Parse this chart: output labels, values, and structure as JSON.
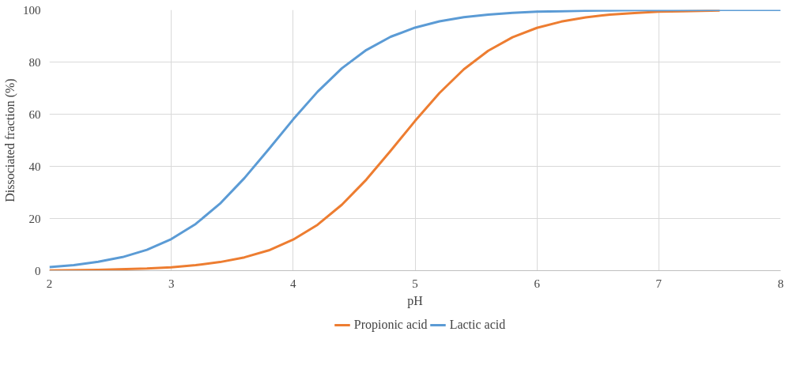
{
  "chart_data": {
    "type": "line",
    "xlabel": "pH",
    "ylabel": "Dissociated fraction (%)",
    "xlim": [
      2,
      8
    ],
    "ylim": [
      0,
      100
    ],
    "xticks": [
      2,
      3,
      4,
      5,
      6,
      7,
      8
    ],
    "yticks": [
      0,
      20,
      40,
      60,
      80,
      100
    ],
    "grid": true,
    "legend": "bottom",
    "marker": "none",
    "line_style": "solid",
    "series": [
      {
        "name": "Propionic acid",
        "color": "#ed7d31",
        "x": [
          2.0,
          2.4,
          2.8,
          3.0,
          3.2,
          3.4,
          3.6,
          3.8,
          4.0,
          4.2,
          4.4,
          4.6,
          4.8,
          5.0,
          5.2,
          5.4,
          5.6,
          5.8,
          6.0,
          6.2,
          6.4,
          6.6,
          6.8,
          7.0,
          7.2,
          7.5
        ],
        "values": [
          0.1,
          0.3,
          0.8,
          1.3,
          2.1,
          3.3,
          5.1,
          7.8,
          11.9,
          17.6,
          25.3,
          34.9,
          46.0,
          57.4,
          68.1,
          77.2,
          84.3,
          89.5,
          93.1,
          95.5,
          97.1,
          98.2,
          98.8,
          99.3,
          99.5,
          99.8
        ]
      },
      {
        "name": "Lactic acid",
        "color": "#5b9bd5",
        "x": [
          2.0,
          2.2,
          2.4,
          2.6,
          2.8,
          3.0,
          3.2,
          3.4,
          3.6,
          3.8,
          4.0,
          4.2,
          4.4,
          4.6,
          4.8,
          5.0,
          5.2,
          5.4,
          5.6,
          5.8,
          6.0,
          6.2,
          6.4,
          6.6,
          6.8,
          7.0,
          7.5,
          8.0
        ],
        "values": [
          1.4,
          2.1,
          3.4,
          5.2,
          8.0,
          12.1,
          17.9,
          25.7,
          35.5,
          46.6,
          58.0,
          68.6,
          77.6,
          84.6,
          89.7,
          93.2,
          95.6,
          97.2,
          98.2,
          98.9,
          99.3,
          99.5,
          99.7,
          99.8,
          99.9,
          99.9,
          100,
          100
        ]
      }
    ]
  }
}
